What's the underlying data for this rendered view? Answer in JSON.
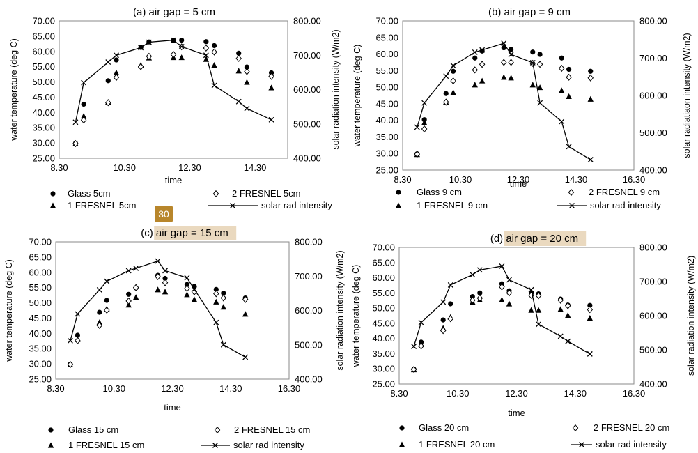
{
  "page_badge": "30",
  "legend_symbols": {
    "glass": "filled-circle-marker",
    "fresnel1": "filled-triangle-marker",
    "fresnel2": "open-diamond-marker",
    "solar": "line-with-x-marker"
  },
  "chart_data": [
    {
      "type": "scatter",
      "title": "(a) air gap = 5 cm",
      "title_highlighted": false,
      "xlabel": "time",
      "ylabel": "water temperature (deg C)",
      "y2label": "solar radiation intensity (W/m2)",
      "x_ticks": [
        "8.30",
        "10.30",
        "12.30",
        "14.30"
      ],
      "y_ticks": [
        "25.00",
        "30.00",
        "35.00",
        "40.00",
        "45.00",
        "50.00",
        "55.00",
        "60.00",
        "65.00",
        "70.00"
      ],
      "y2_ticks": [
        "400.00",
        "500.00",
        "600.00",
        "700.00",
        "800.00"
      ],
      "xlim": [
        8.5,
        15.5
      ],
      "ylim": [
        25,
        70
      ],
      "y2lim": [
        400,
        800
      ],
      "series": [
        {
          "name": "Glass 5cm",
          "marker": "circle",
          "axis": "left",
          "x": [
            9.0,
            9.25,
            10.0,
            10.25,
            11.0,
            11.25,
            12.0,
            12.25,
            13.0,
            13.25,
            14.0,
            14.25,
            15.0
          ],
          "values": [
            29.9,
            42.7,
            50.4,
            57.2,
            61.3,
            63.1,
            63.6,
            63.7,
            63.2,
            61.9,
            59.4,
            54.9,
            53.0
          ]
        },
        {
          "name": "1 FRESNEL 5cm",
          "marker": "triangle",
          "axis": "left",
          "x": [
            9.0,
            9.25,
            10.0,
            10.25,
            11.0,
            11.25,
            12.0,
            12.25,
            13.0,
            13.25,
            14.0,
            14.25,
            15.0
          ],
          "values": [
            29.8,
            38.8,
            43.4,
            53.0,
            55.5,
            57.9,
            58.0,
            58.0,
            57.4,
            55.5,
            53.6,
            49.9,
            48.1
          ]
        },
        {
          "name": "2 FRESNEL 5cm",
          "marker": "diamond",
          "axis": "left",
          "x": [
            9.0,
            9.25,
            10.0,
            10.25,
            11.0,
            11.25,
            12.0,
            12.25,
            13.0,
            13.25,
            14.0,
            14.25,
            15.0
          ],
          "values": [
            29.8,
            37.5,
            43.2,
            51.5,
            55.0,
            58.4,
            59.0,
            61.5,
            61.1,
            59.8,
            57.7,
            53.4,
            51.8
          ]
        },
        {
          "name": "solar rad intensity",
          "marker": "x-line",
          "axis": "right",
          "x": [
            9.0,
            9.25,
            10.0,
            10.25,
            11.0,
            11.25,
            12.0,
            12.25,
            13.0,
            13.25,
            14.0,
            14.25,
            15.0
          ],
          "values": [
            505,
            620,
            680,
            700,
            722,
            738,
            744,
            725,
            700,
            612,
            565,
            545,
            512
          ]
        }
      ]
    },
    {
      "type": "scatter",
      "title": "(b) air gap = 9 cm",
      "title_highlighted": false,
      "xlabel": "time",
      "ylabel": "water temperature (deg C)",
      "y2label": "solar radiatiaon intensity (W/m2)",
      "x_ticks": [
        "8.30",
        "10.30",
        "12.30",
        "14.30",
        "16.30"
      ],
      "y_ticks": [
        "25.00",
        "30.00",
        "35.00",
        "40.00",
        "45.00",
        "50.00",
        "55.00",
        "60.00",
        "65.00",
        "70.00"
      ],
      "y2_ticks": [
        "400.00",
        "500.00",
        "600.00",
        "700.00",
        "800.00"
      ],
      "xlim": [
        8.5,
        16.5
      ],
      "ylim": [
        25,
        70
      ],
      "y2lim": [
        400,
        800
      ],
      "series": [
        {
          "name": "Glass 9 cm",
          "marker": "circle",
          "axis": "left",
          "x": [
            9.0,
            9.25,
            10.0,
            10.25,
            11.0,
            11.25,
            12.0,
            12.25,
            13.0,
            13.25,
            14.0,
            14.25,
            15.0
          ],
          "values": [
            29.9,
            40.2,
            48.1,
            54.8,
            58.8,
            60.9,
            61.9,
            61.4,
            60.6,
            59.9,
            58.8,
            55.4,
            54.8
          ]
        },
        {
          "name": "1 FRESNEL 9 cm",
          "marker": "triangle",
          "axis": "left",
          "x": [
            9.0,
            9.25,
            10.0,
            10.25,
            11.0,
            11.25,
            12.0,
            12.25,
            13.0,
            13.25,
            14.0,
            14.25,
            15.0
          ],
          "values": [
            29.7,
            39.3,
            45.5,
            48.4,
            50.7,
            51.9,
            53.0,
            52.8,
            50.7,
            49.9,
            49.0,
            47.2,
            46.4
          ]
        },
        {
          "name": "2 FRESNEL 9 cm",
          "marker": "diamond",
          "axis": "left",
          "x": [
            9.0,
            9.25,
            10.0,
            10.25,
            11.0,
            11.25,
            12.0,
            12.25,
            13.0,
            13.25,
            14.0,
            14.25,
            15.0
          ],
          "values": [
            29.8,
            37.4,
            45.5,
            51.9,
            55.2,
            56.9,
            57.5,
            57.5,
            57.2,
            56.9,
            55.7,
            53.0,
            52.8
          ]
        },
        {
          "name": "solar rad intensity",
          "marker": "x-line",
          "axis": "right",
          "x": [
            9.0,
            9.25,
            10.0,
            10.25,
            11.0,
            11.25,
            12.0,
            12.25,
            13.0,
            13.25,
            14.0,
            14.25,
            15.0
          ],
          "values": [
            515,
            580,
            652,
            680,
            716,
            722,
            740,
            710,
            688,
            580,
            530,
            463,
            428
          ]
        }
      ]
    },
    {
      "type": "scatter",
      "title": "(c) air gap = 15 cm",
      "title_highlighted": true,
      "xlabel": "time",
      "ylabel": "water temperature (deg C)",
      "y2label": "solar radiation intensity (W/m2)",
      "x_ticks": [
        "8.30",
        "10.30",
        "12.30",
        "14.30",
        "16.30"
      ],
      "y_ticks": [
        "25.00",
        "30.00",
        "35.00",
        "40.00",
        "45.00",
        "50.00",
        "55.00",
        "60.00",
        "65.00",
        "70.00"
      ],
      "y2_ticks": [
        "400.00",
        "500.00",
        "600.00",
        "700.00",
        "800.00"
      ],
      "xlim": [
        8.5,
        16.5
      ],
      "ylim": [
        25,
        70
      ],
      "y2lim": [
        400,
        800
      ],
      "series": [
        {
          "name": "Glass 15 cm",
          "marker": "circle",
          "axis": "left",
          "x": [
            9.0,
            9.25,
            10.0,
            10.25,
            11.0,
            11.25,
            12.0,
            12.25,
            13.0,
            13.25,
            14.0,
            14.25,
            15.0
          ],
          "values": [
            29.9,
            39.4,
            46.9,
            50.8,
            52.8,
            54.9,
            59.0,
            58.0,
            56.0,
            55.4,
            54.4,
            53.2,
            51.6
          ]
        },
        {
          "name": "1 FRESNEL 15 cm",
          "marker": "triangle",
          "axis": "left",
          "x": [
            9.0,
            9.25,
            10.0,
            10.25,
            11.0,
            11.25,
            12.0,
            12.25,
            13.0,
            13.25,
            14.0,
            14.25,
            15.0
          ],
          "values": [
            29.7,
            38.0,
            43.6,
            48.0,
            49.3,
            51.8,
            54.3,
            53.6,
            52.7,
            51.1,
            50.3,
            48.6,
            46.3
          ]
        },
        {
          "name": "2 FRESNEL 15 cm",
          "marker": "diamond",
          "axis": "left",
          "x": [
            9.0,
            9.25,
            10.0,
            10.25,
            11.0,
            11.25,
            12.0,
            12.25,
            13.0,
            13.25,
            14.0,
            14.25,
            15.0
          ],
          "values": [
            29.8,
            37.6,
            42.6,
            47.6,
            50.6,
            55.0,
            58.6,
            56.6,
            54.7,
            53.6,
            53.0,
            51.6,
            51.1
          ]
        },
        {
          "name": "solar rad intensity",
          "marker": "x-line",
          "axis": "right",
          "x": [
            9.0,
            9.25,
            10.0,
            10.25,
            11.0,
            11.25,
            12.0,
            12.25,
            13.0,
            13.25,
            14.0,
            14.25,
            15.0
          ],
          "values": [
            512,
            590,
            660,
            685,
            716,
            723,
            744,
            716,
            695,
            662,
            565,
            500,
            464
          ]
        }
      ]
    },
    {
      "type": "scatter",
      "title": "(d) air gap = 20 cm",
      "title_highlighted": true,
      "xlabel": "time",
      "ylabel": "water temperature (deg C)",
      "y2label": "solar radiation intensity (W/m2)",
      "x_ticks": [
        "8.30",
        "10.30",
        "12.30",
        "14.30",
        "16.30"
      ],
      "y_ticks": [
        "25.00",
        "30.00",
        "35.00",
        "40.00",
        "45.00",
        "50.00",
        "55.00",
        "60.00",
        "65.00",
        "70.00"
      ],
      "y2_ticks": [
        "400.00",
        "500.00",
        "600.00",
        "700.00",
        "800.00"
      ],
      "xlim": [
        8.5,
        16.5
      ],
      "ylim": [
        25,
        70
      ],
      "y2lim": [
        400,
        800
      ],
      "series": [
        {
          "name": "Glass 20 cm",
          "marker": "circle",
          "axis": "left",
          "x": [
            9.0,
            9.25,
            10.0,
            10.25,
            11.0,
            11.25,
            12.0,
            12.25,
            13.0,
            13.25,
            14.0,
            14.25,
            15.0
          ],
          "values": [
            29.9,
            38.8,
            46.1,
            51.4,
            53.8,
            55.0,
            58.0,
            55.7,
            55.0,
            54.7,
            53.0,
            51.0,
            50.9
          ]
        },
        {
          "name": "1 FRESNEL 20 cm",
          "marker": "triangle",
          "axis": "left",
          "x": [
            9.0,
            9.25,
            10.0,
            10.25,
            11.0,
            11.25,
            12.0,
            12.25,
            13.0,
            13.25,
            14.0,
            14.25,
            15.0
          ],
          "values": [
            29.7,
            38.0,
            43.4,
            47.0,
            52.0,
            52.7,
            52.7,
            51.4,
            49.3,
            49.3,
            49.6,
            47.6,
            46.7
          ]
        },
        {
          "name": "2 FRESNEL 20 cm",
          "marker": "diamond",
          "axis": "left",
          "x": [
            9.0,
            9.25,
            10.0,
            10.25,
            11.0,
            11.25,
            12.0,
            12.25,
            13.0,
            13.25,
            14.0,
            14.25,
            15.0
          ],
          "values": [
            29.8,
            37.5,
            42.6,
            46.5,
            52.6,
            53.3,
            57.0,
            55.0,
            54.2,
            54.1,
            52.6,
            50.8,
            49.5
          ]
        },
        {
          "name": "solar rad intensity",
          "marker": "x-line",
          "axis": "right",
          "x": [
            9.0,
            9.25,
            10.0,
            10.25,
            11.0,
            11.25,
            12.0,
            12.25,
            13.0,
            13.25,
            14.0,
            14.25,
            15.0
          ],
          "values": [
            510,
            580,
            640,
            690,
            720,
            734,
            745,
            705,
            676,
            575,
            540,
            525,
            488
          ]
        }
      ]
    }
  ]
}
